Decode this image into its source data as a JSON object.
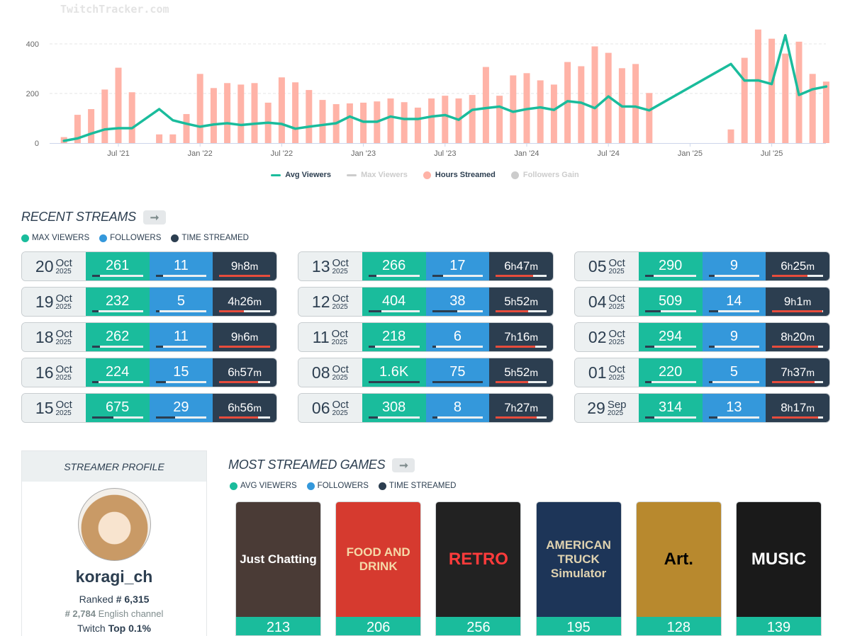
{
  "watermark": "TwitchTracker.com",
  "chart_data": {
    "type": "bar+line",
    "x_start": "2021-03",
    "x_end": "2025-10",
    "x_unit": "month",
    "x_ticks": [
      "Jul '21",
      "Jan '22",
      "Jul '22",
      "Jan '23",
      "Jul '23",
      "Jan '24",
      "Jul '24",
      "Jan '25",
      "Jul '25"
    ],
    "y_ticks": [
      0,
      200,
      400
    ],
    "ylim": [
      0,
      460
    ],
    "grid": true,
    "legend_position": "bottom",
    "series": [
      {
        "name": "Avg Viewers",
        "type": "line",
        "color": "#1abc9c",
        "visible": true,
        "values": [
          9,
          19,
          38,
          55,
          60,
          60,
          null,
          137,
          92,
          78,
          66,
          75,
          80,
          73,
          78,
          82,
          77,
          58,
          66,
          73,
          80,
          107,
          86,
          86,
          107,
          97,
          97,
          107,
          113,
          94,
          134,
          141,
          147,
          126,
          137,
          144,
          134,
          169,
          163,
          141,
          188,
          148,
          147,
          132,
          null,
          null,
          null,
          null,
          null,
          319,
          252,
          253,
          238,
          435,
          194,
          217,
          228
        ]
      },
      {
        "name": "Max Viewers",
        "type": "line",
        "color": "#cccccc",
        "visible": false
      },
      {
        "name": "Hours Streamed",
        "type": "bar",
        "color": "#ffb3a7",
        "visible": true,
        "values": [
          24,
          114,
          137,
          216,
          304,
          205,
          null,
          35,
          35,
          117,
          279,
          222,
          242,
          236,
          242,
          163,
          265,
          245,
          214,
          174,
          157,
          160,
          163,
          168,
          180,
          165,
          143,
          180,
          191,
          180,
          194,
          307,
          191,
          273,
          282,
          253,
          236,
          327,
          310,
          390,
          364,
          302,
          319,
          202,
          null,
          null,
          null,
          null,
          null,
          55,
          344,
          458,
          421,
          361,
          409,
          279,
          248
        ]
      },
      {
        "name": "Followers Gain",
        "type": "line",
        "color": "#cccccc",
        "visible": false
      }
    ]
  },
  "recent": {
    "title": "RECENT STREAMS",
    "keys": [
      "MAX VIEWERS",
      "FOLLOWERS",
      "TIME STREAMED"
    ],
    "streams": [
      {
        "day": "20",
        "mon": "Oct",
        "yr": "2025",
        "viewers": "261",
        "vf": 0.15,
        "followers": "11",
        "ff": 0.14,
        "h": "9",
        "m": "8",
        "tf": 1.0
      },
      {
        "day": "19",
        "mon": "Oct",
        "yr": "2025",
        "viewers": "232",
        "vf": 0.13,
        "followers": "5",
        "ff": 0.07,
        "h": "4",
        "m": "26",
        "tf": 0.48
      },
      {
        "day": "18",
        "mon": "Oct",
        "yr": "2025",
        "viewers": "262",
        "vf": 0.15,
        "followers": "11",
        "ff": 0.14,
        "h": "9",
        "m": "6",
        "tf": 1.0
      },
      {
        "day": "16",
        "mon": "Oct",
        "yr": "2025",
        "viewers": "224",
        "vf": 0.13,
        "followers": "15",
        "ff": 0.2,
        "h": "6",
        "m": "57",
        "tf": 0.76
      },
      {
        "day": "15",
        "mon": "Oct",
        "yr": "2025",
        "viewers": "675",
        "vf": 0.42,
        "followers": "29",
        "ff": 0.38,
        "h": "6",
        "m": "56",
        "tf": 0.76
      },
      {
        "day": "13",
        "mon": "Oct",
        "yr": "2025",
        "viewers": "266",
        "vf": 0.15,
        "followers": "17",
        "ff": 0.21,
        "h": "6",
        "m": "47",
        "tf": 0.74
      },
      {
        "day": "12",
        "mon": "Oct",
        "yr": "2025",
        "viewers": "404",
        "vf": 0.25,
        "followers": "38",
        "ff": 0.5,
        "h": "5",
        "m": "52",
        "tf": 0.64
      },
      {
        "day": "11",
        "mon": "Oct",
        "yr": "2025",
        "viewers": "218",
        "vf": 0.13,
        "followers": "6",
        "ff": 0.07,
        "h": "7",
        "m": "16",
        "tf": 0.78
      },
      {
        "day": "08",
        "mon": "Oct",
        "yr": "2025",
        "viewers": "1.6K",
        "vf": 1.0,
        "followers": "75",
        "ff": 1.0,
        "h": "5",
        "m": "52",
        "tf": 0.64
      },
      {
        "day": "06",
        "mon": "Oct",
        "yr": "2025",
        "viewers": "308",
        "vf": 0.18,
        "followers": "8",
        "ff": 0.1,
        "h": "7",
        "m": "27",
        "tf": 0.81
      },
      {
        "day": "05",
        "mon": "Oct",
        "yr": "2025",
        "viewers": "290",
        "vf": 0.17,
        "followers": "9",
        "ff": 0.12,
        "h": "6",
        "m": "25",
        "tf": 0.7
      },
      {
        "day": "04",
        "mon": "Oct",
        "yr": "2025",
        "viewers": "509",
        "vf": 0.31,
        "followers": "14",
        "ff": 0.19,
        "h": "9",
        "m": "1",
        "tf": 0.98
      },
      {
        "day": "02",
        "mon": "Oct",
        "yr": "2025",
        "viewers": "294",
        "vf": 0.18,
        "followers": "9",
        "ff": 0.12,
        "h": "8",
        "m": "20",
        "tf": 0.9
      },
      {
        "day": "01",
        "mon": "Oct",
        "yr": "2025",
        "viewers": "220",
        "vf": 0.13,
        "followers": "5",
        "ff": 0.07,
        "h": "7",
        "m": "37",
        "tf": 0.83
      },
      {
        "day": "29",
        "mon": "Sep",
        "yr": "2025",
        "viewers": "314",
        "vf": 0.19,
        "followers": "13",
        "ff": 0.17,
        "h": "8",
        "m": "17",
        "tf": 0.9
      }
    ]
  },
  "profile": {
    "header": "STREAMER PROFILE",
    "name": "koragi_ch",
    "ranked_label": "Ranked",
    "ranked": "# 6,315",
    "lang_rank": "# 2,784",
    "lang_label": "English channel",
    "top_label": "Twitch",
    "top": "Top 0.1%"
  },
  "games": {
    "title": "MOST STREAMED GAMES",
    "keys": [
      "AVG VIEWERS",
      "FOLLOWERS",
      "TIME STREAMED"
    ],
    "items": [
      {
        "art": "Just Chatting",
        "value": "213",
        "bg": "#4a3b36",
        "fg": "#ffffff"
      },
      {
        "art": "FOOD AND DRINK",
        "value": "206",
        "bg": "#d63a2f",
        "fg": "#f5d9a8"
      },
      {
        "art": "RETRO",
        "value": "256",
        "bg": "#222222",
        "fg": "#ff3b3b"
      },
      {
        "art": "AMERICAN TRUCK Simulator",
        "value": "195",
        "bg": "#1d3558",
        "fg": "#e0d3b0"
      },
      {
        "art": "Art.",
        "value": "128",
        "bg": "#b8892e",
        "fg": "#000000"
      },
      {
        "art": "MUSIC",
        "value": "139",
        "bg": "#1a1a1a",
        "fg": "#ffffff"
      }
    ]
  }
}
